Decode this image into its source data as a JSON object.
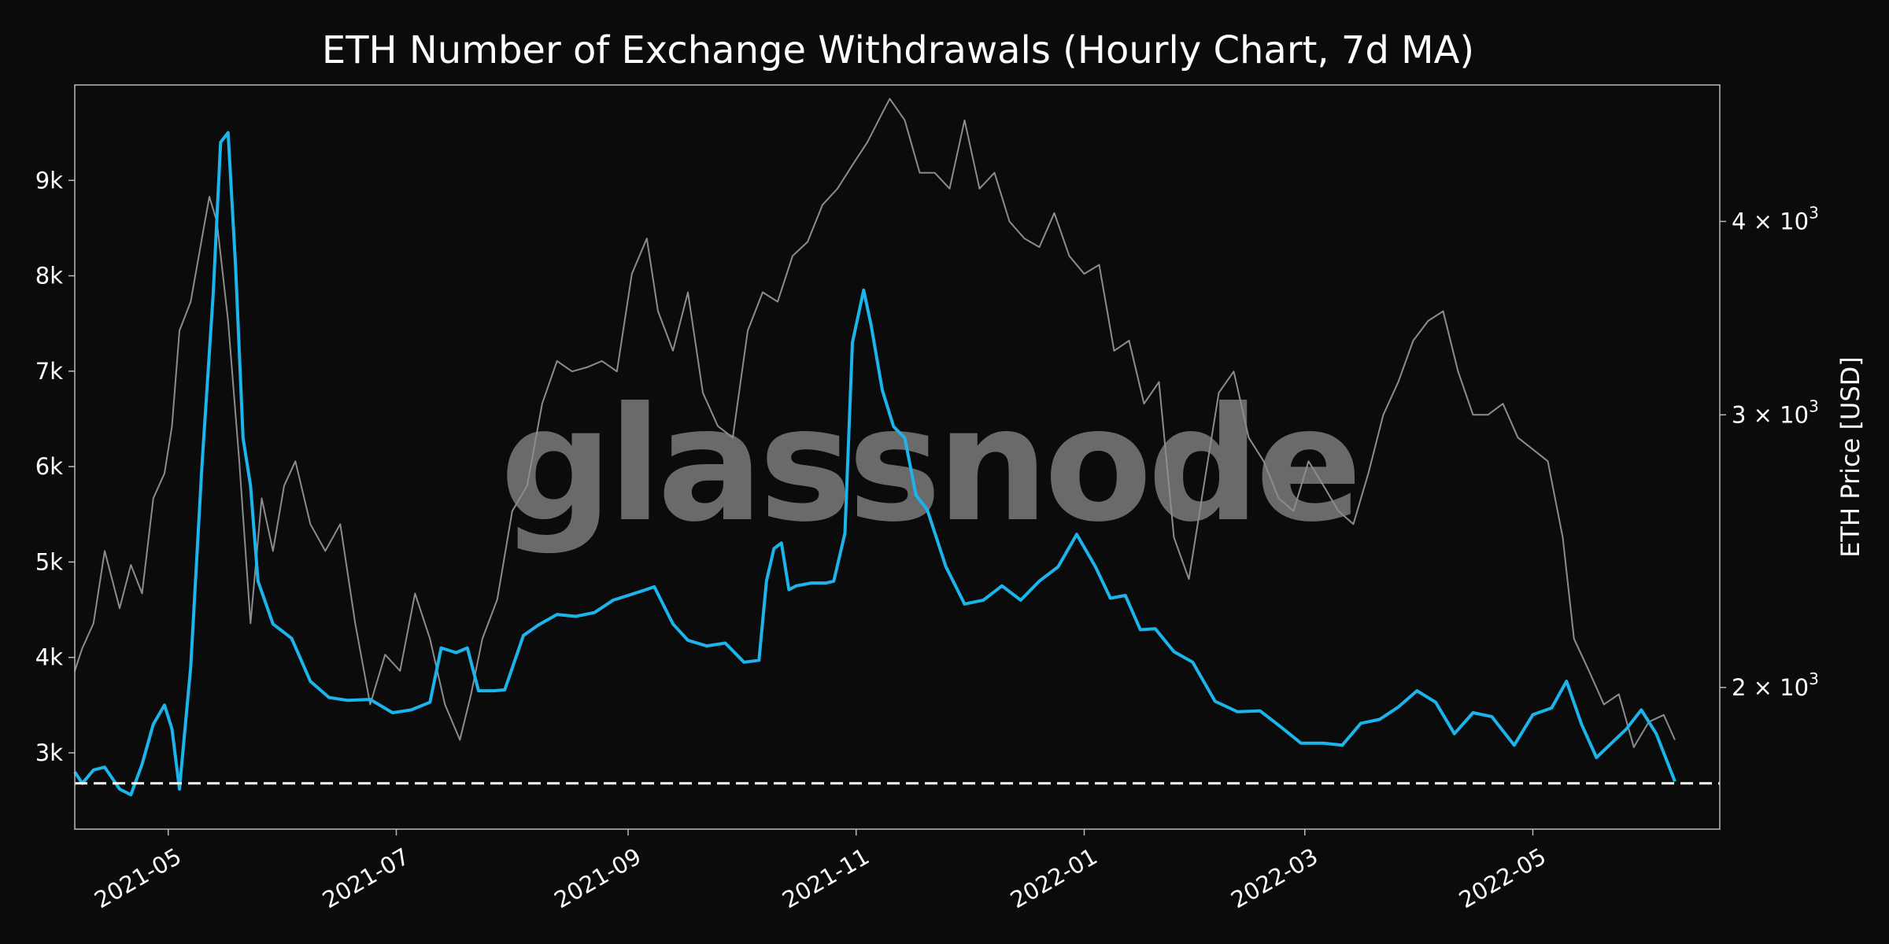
{
  "colors": {
    "background": "#0b0b0b",
    "withdrawals": "#1bb5ec",
    "price": "#8c8c8c",
    "axis": "#bbbbbb",
    "baseline": "#ffffff"
  },
  "watermark": "glassnode",
  "chart_data": {
    "type": "line",
    "title": "ETH Number of Exchange Withdrawals (Hourly Chart, 7d MA)",
    "xlabel": "",
    "ylabel_left": "",
    "ylabel_right": "ETH Price [USD]",
    "x_ticks": [
      "2021-05",
      "2021-07",
      "2021-09",
      "2021-11",
      "2022-01",
      "2022-03",
      "2022-05"
    ],
    "y_left_ticks": [
      "3k",
      "4k",
      "5k",
      "6k",
      "7k",
      "8k",
      "9k"
    ],
    "y_right_ticks": [
      {
        "value": 2000,
        "mantissa": "2",
        "base": "10",
        "exp": "3"
      },
      {
        "value": 3000,
        "mantissa": "3",
        "base": "10",
        "exp": "3"
      },
      {
        "value": 4000,
        "mantissa": "4",
        "base": "10",
        "exp": "3"
      }
    ],
    "xlim": [
      "2021-04-06",
      "2022-06-20"
    ],
    "y_left_lim": [
      2200,
      10000
    ],
    "y_right_lim": [
      1620,
      4900
    ],
    "y_right_scale": "log",
    "grid": false,
    "reference_line": {
      "axis": "left",
      "value": 2680,
      "style": "dashed"
    },
    "series": [
      {
        "name": "",
        "axis": "left",
        "x": [
          "2021-04-06",
          "2021-04-08",
          "2021-04-11",
          "2021-04-14",
          "2021-04-18",
          "2021-04-21",
          "2021-04-24",
          "2021-04-27",
          "2021-04-30",
          "2021-05-02",
          "2021-05-04",
          "2021-05-07",
          "2021-05-10",
          "2021-05-13",
          "2021-05-15",
          "2021-05-17",
          "2021-05-19",
          "2021-05-21",
          "2021-05-23",
          "2021-05-25",
          "2021-05-29",
          "2021-06-03",
          "2021-06-08",
          "2021-06-13",
          "2021-06-18",
          "2021-06-24",
          "2021-06-30",
          "2021-07-05",
          "2021-07-10",
          "2021-07-13",
          "2021-07-17",
          "2021-07-20",
          "2021-07-23",
          "2021-07-27",
          "2021-07-30",
          "2021-08-04",
          "2021-08-08",
          "2021-08-13",
          "2021-08-18",
          "2021-08-23",
          "2021-08-28",
          "2021-09-01",
          "2021-09-05",
          "2021-09-08",
          "2021-09-13",
          "2021-09-17",
          "2021-09-22",
          "2021-09-27",
          "2021-10-02",
          "2021-10-06",
          "2021-10-08",
          "2021-10-10",
          "2021-10-12",
          "2021-10-14",
          "2021-10-16",
          "2021-10-20",
          "2021-10-24",
          "2021-10-26",
          "2021-10-29",
          "2021-10-31",
          "2021-11-03",
          "2021-11-05",
          "2021-11-08",
          "2021-11-11",
          "2021-11-14",
          "2021-11-17",
          "2021-11-20",
          "2021-11-25",
          "2021-11-30",
          "2021-12-05",
          "2021-12-10",
          "2021-12-15",
          "2021-12-20",
          "2021-12-25",
          "2021-12-30",
          "2022-01-04",
          "2022-01-08",
          "2022-01-12",
          "2022-01-16",
          "2022-01-20",
          "2022-01-25",
          "2022-01-30",
          "2022-02-05",
          "2022-02-11",
          "2022-02-17",
          "2022-02-22",
          "2022-02-28",
          "2022-03-06",
          "2022-03-11",
          "2022-03-16",
          "2022-03-21",
          "2022-03-26",
          "2022-03-31",
          "2022-04-05",
          "2022-04-10",
          "2022-04-15",
          "2022-04-20",
          "2022-04-26",
          "2022-05-01",
          "2022-05-06",
          "2022-05-10",
          "2022-05-14",
          "2022-05-18",
          "2022-05-22",
          "2022-05-26",
          "2022-05-30",
          "2022-06-03",
          "2022-06-08"
        ],
        "values": [
          2800,
          2680,
          2820,
          2850,
          2620,
          2560,
          2880,
          3300,
          3500,
          3250,
          2620,
          3900,
          6000,
          7800,
          9400,
          9500,
          8100,
          6300,
          5800,
          4800,
          4350,
          4200,
          3750,
          3580,
          3550,
          3560,
          3420,
          3450,
          3530,
          4100,
          4050,
          4100,
          3650,
          3650,
          3660,
          4230,
          4340,
          4450,
          4430,
          4470,
          4600,
          4650,
          4700,
          4740,
          4350,
          4180,
          4120,
          4150,
          3950,
          3970,
          4800,
          5140,
          5200,
          4710,
          4750,
          4780,
          4780,
          4800,
          5300,
          7300,
          7850,
          7480,
          6800,
          6420,
          6300,
          5700,
          5550,
          4950,
          4560,
          4600,
          4750,
          4600,
          4800,
          4950,
          5290,
          4950,
          4620,
          4650,
          4290,
          4300,
          4060,
          3950,
          3540,
          3430,
          3440,
          3290,
          3100,
          3100,
          3080,
          3310,
          3350,
          3480,
          3650,
          3530,
          3200,
          3420,
          3380,
          3080,
          3400,
          3470,
          3750,
          3300,
          2950,
          3100,
          3250,
          3450,
          3200,
          2700
        ],
        "line_color": "#1bb5ec"
      },
      {
        "name": "ETH Price [USD]",
        "axis": "right",
        "x": [
          "2021-04-06",
          "2021-04-08",
          "2021-04-11",
          "2021-04-14",
          "2021-04-18",
          "2021-04-21",
          "2021-04-24",
          "2021-04-27",
          "2021-04-30",
          "2021-05-02",
          "2021-05-04",
          "2021-05-07",
          "2021-05-10",
          "2021-05-12",
          "2021-05-14",
          "2021-05-17",
          "2021-05-20",
          "2021-05-23",
          "2021-05-26",
          "2021-05-29",
          "2021-06-01",
          "2021-06-04",
          "2021-06-08",
          "2021-06-12",
          "2021-06-16",
          "2021-06-20",
          "2021-06-24",
          "2021-06-28",
          "2021-07-02",
          "2021-07-06",
          "2021-07-10",
          "2021-07-14",
          "2021-07-18",
          "2021-07-21",
          "2021-07-24",
          "2021-07-28",
          "2021-08-01",
          "2021-08-05",
          "2021-08-09",
          "2021-08-13",
          "2021-08-17",
          "2021-08-21",
          "2021-08-25",
          "2021-08-29",
          "2021-09-02",
          "2021-09-06",
          "2021-09-09",
          "2021-09-13",
          "2021-09-17",
          "2021-09-21",
          "2021-09-25",
          "2021-09-29",
          "2021-10-03",
          "2021-10-07",
          "2021-10-11",
          "2021-10-15",
          "2021-10-19",
          "2021-10-23",
          "2021-10-27",
          "2021-10-31",
          "2021-11-04",
          "2021-11-08",
          "2021-11-10",
          "2021-11-14",
          "2021-11-18",
          "2021-11-22",
          "2021-11-26",
          "2021-11-30",
          "2021-12-04",
          "2021-12-08",
          "2021-12-12",
          "2021-12-16",
          "2021-12-20",
          "2021-12-24",
          "2021-12-28",
          "2022-01-01",
          "2022-01-05",
          "2022-01-09",
          "2022-01-13",
          "2022-01-17",
          "2022-01-21",
          "2022-01-25",
          "2022-01-29",
          "2022-02-02",
          "2022-02-06",
          "2022-02-10",
          "2022-02-14",
          "2022-02-18",
          "2022-02-22",
          "2022-02-26",
          "2022-03-02",
          "2022-03-06",
          "2022-03-10",
          "2022-03-14",
          "2022-03-18",
          "2022-03-22",
          "2022-03-26",
          "2022-03-30",
          "2022-04-03",
          "2022-04-07",
          "2022-04-11",
          "2022-04-15",
          "2022-04-19",
          "2022-04-23",
          "2022-04-27",
          "2022-05-01",
          "2022-05-05",
          "2022-05-09",
          "2022-05-12",
          "2022-05-16",
          "2022-05-20",
          "2022-05-24",
          "2022-05-28",
          "2022-06-01",
          "2022-06-05",
          "2022-06-08"
        ],
        "values": [
          2050,
          2120,
          2200,
          2450,
          2250,
          2400,
          2300,
          2650,
          2750,
          2950,
          3400,
          3550,
          3900,
          4150,
          4000,
          3450,
          2800,
          2200,
          2650,
          2450,
          2700,
          2800,
          2550,
          2450,
          2550,
          2200,
          1950,
          2100,
          2050,
          2300,
          2150,
          1950,
          1850,
          1980,
          2150,
          2280,
          2600,
          2700,
          3050,
          3250,
          3200,
          3220,
          3250,
          3200,
          3700,
          3900,
          3500,
          3300,
          3600,
          3100,
          2950,
          2900,
          3400,
          3600,
          3550,
          3800,
          3880,
          4100,
          4200,
          4350,
          4500,
          4700,
          4800,
          4650,
          4300,
          4300,
          4200,
          4650,
          4200,
          4300,
          4000,
          3900,
          3850,
          4050,
          3800,
          3700,
          3750,
          3300,
          3350,
          3050,
          3150,
          2500,
          2350,
          2700,
          3100,
          3200,
          2900,
          2800,
          2650,
          2600,
          2800,
          2700,
          2600,
          2550,
          2750,
          3000,
          3150,
          3350,
          3450,
          3500,
          3200,
          3000,
          3000,
          3050,
          2900,
          2850,
          2800,
          2500,
          2150,
          2050,
          1950,
          1980,
          1830,
          1900,
          1920,
          1850
        ],
        "line_color": "#8c8c8c"
      }
    ]
  }
}
